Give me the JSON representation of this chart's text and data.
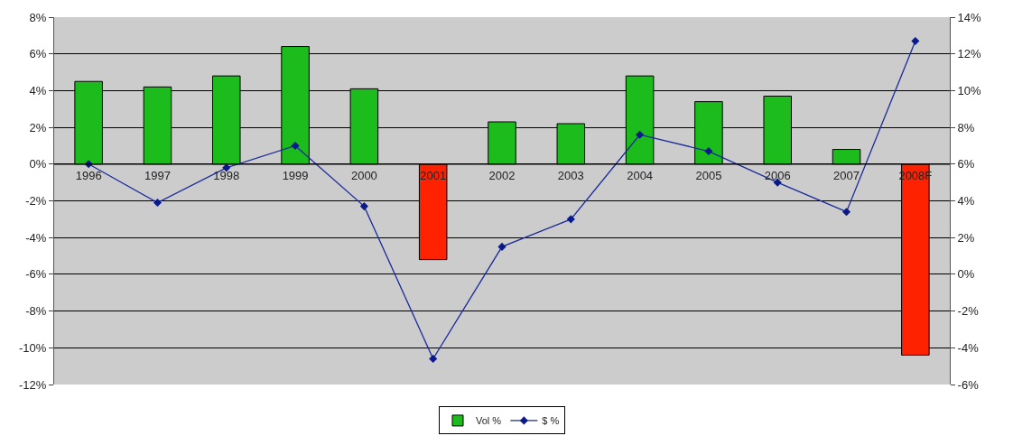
{
  "chart_data": {
    "type": "bar",
    "categories": [
      "1996",
      "1997",
      "1998",
      "1999",
      "2000",
      "2001",
      "2002",
      "2003",
      "2004",
      "2005",
      "2006",
      "2007",
      "2008F"
    ],
    "series": [
      {
        "name": "Vol %",
        "color": "#1cbc1c",
        "colors": [
          "#1cbc1c",
          "#1cbc1c",
          "#1cbc1c",
          "#1cbc1c",
          "#1cbc1c",
          "#ff2200",
          "#1cbc1c",
          "#1cbc1c",
          "#1cbc1c",
          "#1cbc1c",
          "#1cbc1c",
          "#1cbc1c",
          "#ff2200"
        ],
        "values": [
          4.5,
          4.2,
          4.8,
          6.4,
          4.1,
          -5.2,
          2.3,
          2.2,
          4.8,
          3.4,
          3.7,
          0.8,
          -10.4
        ]
      },
      {
        "name": "$ %",
        "type": "line",
        "axis": "y2",
        "color": "#1a2a9c",
        "marker": "diamond",
        "values": [
          6.0,
          3.9,
          5.8,
          7.0,
          3.7,
          -4.6,
          1.5,
          3.0,
          7.6,
          6.7,
          5.0,
          3.4,
          12.7
        ]
      }
    ],
    "ylim": [
      -12,
      8
    ],
    "yticks": [
      {
        "value": -12,
        "label": "-12%"
      },
      {
        "value": -10,
        "label": "-10%"
      },
      {
        "value": -8,
        "label": "-8%"
      },
      {
        "value": -6,
        "label": "-6%"
      },
      {
        "value": -4,
        "label": "-4%"
      },
      {
        "value": -2,
        "label": "-2%"
      },
      {
        "value": 0,
        "label": "0%"
      },
      {
        "value": 2,
        "label": "2%"
      },
      {
        "value": 4,
        "label": "4%"
      },
      {
        "value": 6,
        "label": "6%"
      },
      {
        "value": 8,
        "label": "8%"
      }
    ],
    "y2lim": [
      -6,
      14
    ],
    "y2ticks": [
      {
        "value": -6,
        "label": "-6%"
      },
      {
        "value": -4,
        "label": "-4%"
      },
      {
        "value": -2,
        "label": "-2%"
      },
      {
        "value": 0,
        "label": "0%"
      },
      {
        "value": 2,
        "label": "2%"
      },
      {
        "value": 4,
        "label": "4%"
      },
      {
        "value": 6,
        "label": "6%"
      },
      {
        "value": 8,
        "label": "8%"
      },
      {
        "value": 10,
        "label": "10%"
      },
      {
        "value": 12,
        "label": "12%"
      },
      {
        "value": 14,
        "label": "14%"
      }
    ],
    "grid": "y",
    "legend": "bottom"
  }
}
